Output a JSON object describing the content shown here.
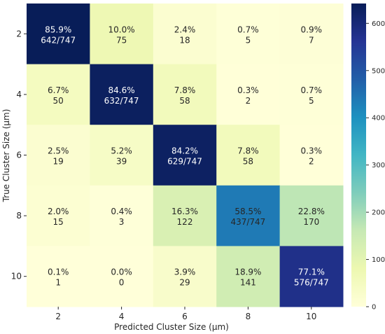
{
  "chart_data": {
    "type": "heatmap",
    "xlabel": "Predicted Cluster Size (μm)",
    "ylabel": "True Cluster Size (μm)",
    "x_categories": [
      "2",
      "4",
      "6",
      "8",
      "10"
    ],
    "y_categories": [
      "2",
      "4",
      "6",
      "8",
      "10"
    ],
    "colormap": "YlGnBu",
    "vmin": 0,
    "vmax": 642,
    "colorbar_ticks": [
      0,
      100,
      200,
      300,
      400,
      500,
      600
    ],
    "colorbar_tick_labels": [
      "0",
      "100",
      "200",
      "300",
      "400",
      "500",
      "600"
    ],
    "values": [
      [
        642,
        75,
        18,
        5,
        7
      ],
      [
        50,
        632,
        58,
        2,
        5
      ],
      [
        19,
        39,
        629,
        58,
        2
      ],
      [
        15,
        3,
        122,
        437,
        170
      ],
      [
        1,
        0,
        29,
        141,
        576
      ]
    ],
    "cell_labels": [
      [
        [
          "85.9%",
          "642/747"
        ],
        [
          "10.0%",
          "75"
        ],
        [
          "2.4%",
          "18"
        ],
        [
          "0.7%",
          "5"
        ],
        [
          "0.9%",
          "7"
        ]
      ],
      [
        [
          "6.7%",
          "50"
        ],
        [
          "84.6%",
          "632/747"
        ],
        [
          "7.8%",
          "58"
        ],
        [
          "0.3%",
          "2"
        ],
        [
          "0.7%",
          "5"
        ]
      ],
      [
        [
          "2.5%",
          "19"
        ],
        [
          "5.2%",
          "39"
        ],
        [
          "84.2%",
          "629/747"
        ],
        [
          "7.8%",
          "58"
        ],
        [
          "0.3%",
          "2"
        ]
      ],
      [
        [
          "2.0%",
          "15"
        ],
        [
          "0.4%",
          "3"
        ],
        [
          "16.3%",
          "122"
        ],
        [
          "58.5%",
          "437/747"
        ],
        [
          "22.8%",
          "170"
        ]
      ],
      [
        [
          "0.1%",
          "1"
        ],
        [
          "0.0%",
          "0"
        ],
        [
          "3.9%",
          "29"
        ],
        [
          "18.9%",
          "141"
        ],
        [
          "77.1%",
          "576/747"
        ]
      ]
    ]
  }
}
